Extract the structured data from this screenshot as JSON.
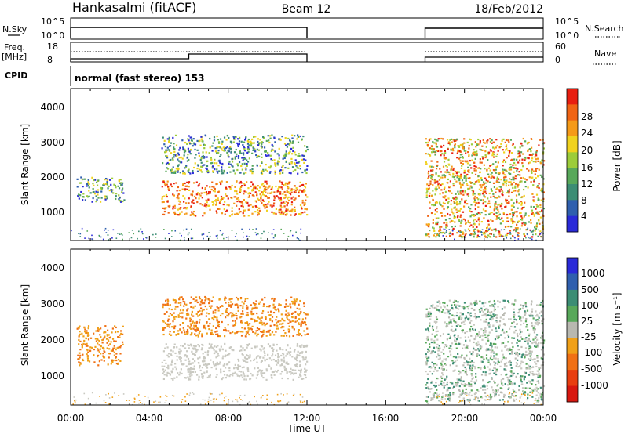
{
  "header": {
    "station": "Hankasalmi (fitACF)",
    "beam": "Beam 12",
    "date": "18/Feb/2012"
  },
  "strips": {
    "nsky_label": "N.Sky",
    "nsky_ticks": [
      "10^5",
      "10^0"
    ],
    "nsearch_label": "N.Search",
    "nsearch_ticks": [
      "10^5",
      "10^0"
    ],
    "freq_label": "Freq.",
    "freq_unit": "[MHz]",
    "freq_ticks": [
      "18",
      "8"
    ],
    "nave_label": "Nave",
    "nave_ticks": [
      "60",
      "0"
    ],
    "cpid_label": "CPID",
    "cpid_text": "normal (fast stereo) 153"
  },
  "colors": {
    "power_scale": [
      "#2a2ad8",
      "#2f5fae",
      "#3c8d74",
      "#58a85a",
      "#9ccc3a",
      "#f0d21e",
      "#f59a18",
      "#f06414",
      "#e81e10"
    ],
    "velocity_scale": [
      "#2a2ad8",
      "#2f5fae",
      "#3c8d74",
      "#58a85a",
      "#b8b8b0",
      "#f0a018",
      "#f07014",
      "#e83e10",
      "#d81810"
    ],
    "ground_scatter": "#c9c9c1"
  },
  "chart_data": [
    {
      "type": "heatmap",
      "panel": "power",
      "ylabel": "Slant Range [km]",
      "xlabel": "",
      "ylim": [
        180,
        4500
      ],
      "xlim": [
        "00:00",
        "24:00"
      ],
      "y_ticks": [
        "1000",
        "2000",
        "3000",
        "4000"
      ],
      "colorbar": {
        "label": "Power [dB]",
        "ticks": [
          "4",
          "8",
          "12",
          "16",
          "20",
          "24",
          "28"
        ]
      },
      "regions": [
        {
          "x_range_h": [
            0.3,
            2.7
          ],
          "y_range_km": [
            1300,
            2000
          ],
          "peak_value_dB": 16
        },
        {
          "x_range_h": [
            4.6,
            12.0
          ],
          "y_range_km": [
            900,
            1900
          ],
          "peak_value_dB": 30
        },
        {
          "x_range_h": [
            4.6,
            12.0
          ],
          "y_range_km": [
            2100,
            3200
          ],
          "peak_value_dB": 22
        },
        {
          "x_range_h": [
            18.0,
            24.0
          ],
          "y_range_km": [
            300,
            3100
          ],
          "peak_value_dB": 28
        }
      ]
    },
    {
      "type": "heatmap",
      "panel": "velocity",
      "ylabel": "Slant Range [km]",
      "xlabel": "Time UT",
      "ylim": [
        180,
        4500
      ],
      "xlim": [
        "00:00",
        "24:00"
      ],
      "y_ticks": [
        "1000",
        "2000",
        "3000",
        "4000"
      ],
      "x_ticks": [
        "00:00",
        "04:00",
        "08:00",
        "12:00",
        "16:00",
        "20:00",
        "00:00"
      ],
      "colorbar": {
        "label": "Velocity [m s⁻¹]",
        "ticks": [
          "1000",
          "500",
          "100",
          "25",
          "-25",
          "-100",
          "-500",
          "-1000"
        ]
      },
      "regions": [
        {
          "x_range_h": [
            0.3,
            2.7
          ],
          "y_range_km": [
            1300,
            2400
          ],
          "dominant": "-100"
        },
        {
          "x_range_h": [
            4.6,
            12.0
          ],
          "y_range_km": [
            900,
            1900
          ],
          "dominant": "ground scatter"
        },
        {
          "x_range_h": [
            4.6,
            12.0
          ],
          "y_range_km": [
            2100,
            3200
          ],
          "dominant": "-100"
        },
        {
          "x_range_h": [
            18.0,
            24.0
          ],
          "y_range_km": [
            300,
            3100
          ],
          "dominant": "100"
        }
      ]
    }
  ]
}
